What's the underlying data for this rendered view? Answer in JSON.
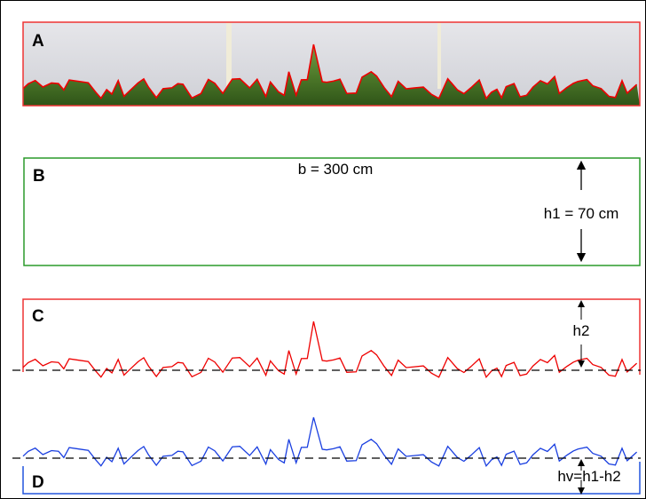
{
  "panels": [
    {
      "label": "A"
    },
    {
      "label": "B",
      "width_label": "b = 300 cm",
      "height_label": "h1 = 70 cm"
    },
    {
      "label": "C",
      "height_label": "h2"
    },
    {
      "label": "D",
      "height_label": "hv=h1-h2"
    }
  ]
}
